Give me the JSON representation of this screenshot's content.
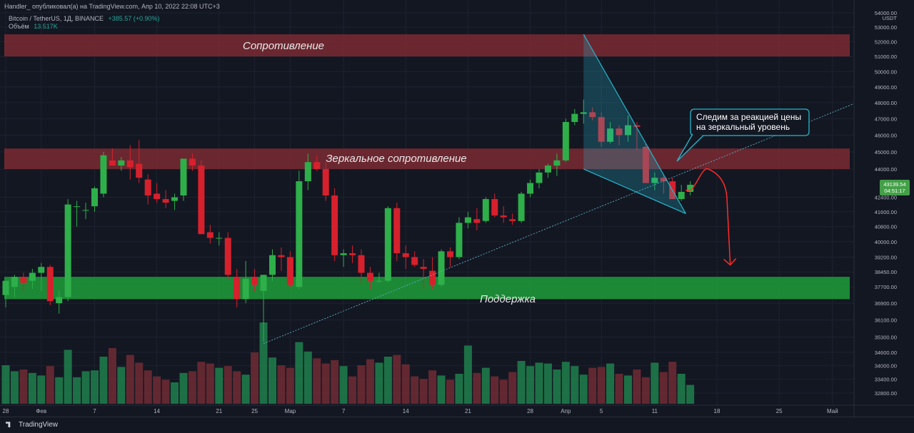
{
  "header": {
    "author_line": "Handler_ опубликовал(а) на TradingView.com, Апр 10, 2022 22:08 UTC+3",
    "symbol_line": "Bitcoin / TetherUS, 1Д, BINANCE",
    "change": "+385.57 (+0.90%)",
    "volume_label": "Объём",
    "volume_value": "13.517K",
    "currency": "USDT"
  },
  "footer": {
    "brand": "TradingView"
  },
  "colors": {
    "up": "#26a69a",
    "down": "#ef5350",
    "resistance_zone": "#7b2a33",
    "support_zone": "#1e9e3a",
    "triangle": "#22b8cf",
    "callout": "#22b8cf",
    "forecast": "#ff2b2b",
    "price_badge": "#43a047"
  },
  "annotations": {
    "resistance": "Сопротивление",
    "mirror_resistance": "Зеркальное сопротивление",
    "support": "Поддержка",
    "callout_line1": "Следим за реакцией цены",
    "callout_line2": "на зеркальный уровень"
  },
  "price_label": {
    "value": "43139.54",
    "timer": "04:51:17"
  },
  "chart_data": {
    "type": "candlestick",
    "scale": "log",
    "ylim": [
      32400,
      54000
    ],
    "y_ticks": [
      "54000.00",
      "53000.00",
      "52000.00",
      "51000.00",
      "50000.00",
      "49000.00",
      "48000.00",
      "47000.00",
      "46000.00",
      "45000.00",
      "44000.00",
      "42400.00",
      "41600.00",
      "40800.00",
      "40000.00",
      "39200.00",
      "38450.00",
      "37700.00",
      "36900.00",
      "36100.00",
      "35300.00",
      "34600.00",
      "34000.00",
      "33400.00",
      "32800.00"
    ],
    "x_ticks": [
      {
        "label": "28",
        "day": 0
      },
      {
        "label": "Фев",
        "day": 4
      },
      {
        "label": "7",
        "day": 10
      },
      {
        "label": "14",
        "day": 17
      },
      {
        "label": "21",
        "day": 24
      },
      {
        "label": "25",
        "day": 28
      },
      {
        "label": "Мар",
        "day": 32
      },
      {
        "label": "7",
        "day": 38
      },
      {
        "label": "14",
        "day": 45
      },
      {
        "label": "21",
        "day": 52
      },
      {
        "label": "28",
        "day": 59
      },
      {
        "label": "Апр",
        "day": 63
      },
      {
        "label": "5",
        "day": 67
      },
      {
        "label": "11",
        "day": 73
      },
      {
        "label": "18",
        "day": 80
      },
      {
        "label": "25",
        "day": 87
      },
      {
        "label": "Май",
        "day": 93
      }
    ],
    "zones": [
      {
        "name": "resistance",
        "from": 51000,
        "to": 52500
      },
      {
        "name": "mirror-resistance",
        "from": 44000,
        "to": 45200
      },
      {
        "name": "support",
        "from": 37100,
        "to": 38200
      }
    ],
    "candles": [
      {
        "o": 37300,
        "h": 38000,
        "l": 36700,
        "c": 38000,
        "v": 0.45
      },
      {
        "o": 37700,
        "h": 38300,
        "l": 37200,
        "c": 38200,
        "v": 0.38
      },
      {
        "o": 38200,
        "h": 38400,
        "l": 37500,
        "c": 37900,
        "v": 0.4
      },
      {
        "o": 38000,
        "h": 38600,
        "l": 37600,
        "c": 38400,
        "v": 0.36
      },
      {
        "o": 38400,
        "h": 38900,
        "l": 37500,
        "c": 38700,
        "v": 0.33
      },
      {
        "o": 38700,
        "h": 38800,
        "l": 36800,
        "c": 37000,
        "v": 0.44
      },
      {
        "o": 36900,
        "h": 37500,
        "l": 36400,
        "c": 37200,
        "v": 0.31
      },
      {
        "o": 37200,
        "h": 42300,
        "l": 37000,
        "c": 42000,
        "v": 0.63
      },
      {
        "o": 41900,
        "h": 42200,
        "l": 40800,
        "c": 41900,
        "v": 0.31
      },
      {
        "o": 41700,
        "h": 42100,
        "l": 41200,
        "c": 41700,
        "v": 0.38
      },
      {
        "o": 41900,
        "h": 43000,
        "l": 41600,
        "c": 42900,
        "v": 0.39
      },
      {
        "o": 42600,
        "h": 45000,
        "l": 42400,
        "c": 44800,
        "v": 0.55
      },
      {
        "o": 44500,
        "h": 45200,
        "l": 44300,
        "c": 44200,
        "v": 0.65
      },
      {
        "o": 44200,
        "h": 44700,
        "l": 43900,
        "c": 44500,
        "v": 0.43
      },
      {
        "o": 44500,
        "h": 45400,
        "l": 43400,
        "c": 44100,
        "v": 0.57
      },
      {
        "o": 44300,
        "h": 45700,
        "l": 43200,
        "c": 43500,
        "v": 0.48
      },
      {
        "o": 43400,
        "h": 43700,
        "l": 42000,
        "c": 42500,
        "v": 0.39
      },
      {
        "o": 42600,
        "h": 43200,
        "l": 42100,
        "c": 42300,
        "v": 0.32
      },
      {
        "o": 42300,
        "h": 42800,
        "l": 41800,
        "c": 42100,
        "v": 0.28
      },
      {
        "o": 42200,
        "h": 42600,
        "l": 41700,
        "c": 42400,
        "v": 0.25
      },
      {
        "o": 42500,
        "h": 44600,
        "l": 42200,
        "c": 44600,
        "v": 0.36
      },
      {
        "o": 44600,
        "h": 44900,
        "l": 43900,
        "c": 44200,
        "v": 0.38
      },
      {
        "o": 44200,
        "h": 44500,
        "l": 40400,
        "c": 40400,
        "v": 0.49
      },
      {
        "o": 40500,
        "h": 40900,
        "l": 39900,
        "c": 40200,
        "v": 0.47
      },
      {
        "o": 40200,
        "h": 40500,
        "l": 39800,
        "c": 40200,
        "v": 0.42
      },
      {
        "o": 40200,
        "h": 40500,
        "l": 38100,
        "c": 38300,
        "v": 0.44
      },
      {
        "o": 38200,
        "h": 38600,
        "l": 36700,
        "c": 37100,
        "v": 0.38
      },
      {
        "o": 37100,
        "h": 39000,
        "l": 36900,
        "c": 38100,
        "v": 0.34
      },
      {
        "o": 38200,
        "h": 38600,
        "l": 37500,
        "c": 37800,
        "v": 0.6
      },
      {
        "o": 37500,
        "h": 38200,
        "l": 35100,
        "c": 38300,
        "v": 0.95
      },
      {
        "o": 38300,
        "h": 39600,
        "l": 38000,
        "c": 39300,
        "v": 0.54
      },
      {
        "o": 39300,
        "h": 39700,
        "l": 38500,
        "c": 39200,
        "v": 0.45
      },
      {
        "o": 39200,
        "h": 39500,
        "l": 37700,
        "c": 37800,
        "v": 0.42
      },
      {
        "o": 37700,
        "h": 43900,
        "l": 37600,
        "c": 43300,
        "v": 0.72
      },
      {
        "o": 43300,
        "h": 44900,
        "l": 42800,
        "c": 44400,
        "v": 0.61
      },
      {
        "o": 44400,
        "h": 44800,
        "l": 43900,
        "c": 44000,
        "v": 0.53
      },
      {
        "o": 44000,
        "h": 44400,
        "l": 42200,
        "c": 42500,
        "v": 0.47
      },
      {
        "o": 42500,
        "h": 42900,
        "l": 39000,
        "c": 39300,
        "v": 0.51
      },
      {
        "o": 39300,
        "h": 39600,
        "l": 38700,
        "c": 39400,
        "v": 0.44
      },
      {
        "o": 39400,
        "h": 39800,
        "l": 38900,
        "c": 39300,
        "v": 0.32
      },
      {
        "o": 39300,
        "h": 39600,
        "l": 37900,
        "c": 38400,
        "v": 0.45
      },
      {
        "o": 38400,
        "h": 38700,
        "l": 37600,
        "c": 38000,
        "v": 0.52
      },
      {
        "o": 38000,
        "h": 38400,
        "l": 37900,
        "c": 38000,
        "v": 0.48
      },
      {
        "o": 38000,
        "h": 41900,
        "l": 37900,
        "c": 41800,
        "v": 0.55
      },
      {
        "o": 41800,
        "h": 42100,
        "l": 39000,
        "c": 39400,
        "v": 0.57
      },
      {
        "o": 39400,
        "h": 39800,
        "l": 38600,
        "c": 39200,
        "v": 0.46
      },
      {
        "o": 39200,
        "h": 39500,
        "l": 38700,
        "c": 38800,
        "v": 0.32
      },
      {
        "o": 38700,
        "h": 39100,
        "l": 37600,
        "c": 38600,
        "v": 0.29
      },
      {
        "o": 38500,
        "h": 39200,
        "l": 37600,
        "c": 37800,
        "v": 0.39
      },
      {
        "o": 37800,
        "h": 39600,
        "l": 37700,
        "c": 39500,
        "v": 0.33
      },
      {
        "o": 39500,
        "h": 39700,
        "l": 38700,
        "c": 39200,
        "v": 0.28
      },
      {
        "o": 39200,
        "h": 41300,
        "l": 39100,
        "c": 41000,
        "v": 0.35
      },
      {
        "o": 41000,
        "h": 41600,
        "l": 40700,
        "c": 41300,
        "v": 0.68
      },
      {
        "o": 41200,
        "h": 41800,
        "l": 40600,
        "c": 41000,
        "v": 0.36
      },
      {
        "o": 41100,
        "h": 42400,
        "l": 41000,
        "c": 42300,
        "v": 0.42
      },
      {
        "o": 42300,
        "h": 42600,
        "l": 41300,
        "c": 41400,
        "v": 0.32
      },
      {
        "o": 41400,
        "h": 41900,
        "l": 41000,
        "c": 41300,
        "v": 0.28
      },
      {
        "o": 41200,
        "h": 41500,
        "l": 40900,
        "c": 41100,
        "v": 0.37
      },
      {
        "o": 41100,
        "h": 42700,
        "l": 41000,
        "c": 42600,
        "v": 0.5
      },
      {
        "o": 42600,
        "h": 43400,
        "l": 42400,
        "c": 43200,
        "v": 0.44
      },
      {
        "o": 43200,
        "h": 44000,
        "l": 42900,
        "c": 43800,
        "v": 0.48
      },
      {
        "o": 43800,
        "h": 44300,
        "l": 43500,
        "c": 44200,
        "v": 0.47
      },
      {
        "o": 44200,
        "h": 44900,
        "l": 43600,
        "c": 44500,
        "v": 0.4
      },
      {
        "o": 44500,
        "h": 47000,
        "l": 44400,
        "c": 46800,
        "v": 0.49
      },
      {
        "o": 46800,
        "h": 47600,
        "l": 46600,
        "c": 47300,
        "v": 0.44
      },
      {
        "o": 47300,
        "h": 48200,
        "l": 46700,
        "c": 47400,
        "v": 0.34
      },
      {
        "o": 47400,
        "h": 47700,
        "l": 46900,
        "c": 47100,
        "v": 0.42
      },
      {
        "o": 47100,
        "h": 47400,
        "l": 45300,
        "c": 45600,
        "v": 0.43
      },
      {
        "o": 45600,
        "h": 46800,
        "l": 45500,
        "c": 46400,
        "v": 0.47
      },
      {
        "o": 46400,
        "h": 46600,
        "l": 45400,
        "c": 46000,
        "v": 0.35
      },
      {
        "o": 46000,
        "h": 47200,
        "l": 45600,
        "c": 46600,
        "v": 0.33
      },
      {
        "o": 46600,
        "h": 46800,
        "l": 45100,
        "c": 46500,
        "v": 0.4
      },
      {
        "o": 45300,
        "h": 45500,
        "l": 43200,
        "c": 43200,
        "v": 0.31
      },
      {
        "o": 43200,
        "h": 43800,
        "l": 42800,
        "c": 43500,
        "v": 0.48
      },
      {
        "o": 43500,
        "h": 43700,
        "l": 42600,
        "c": 43300,
        "v": 0.37
      },
      {
        "o": 43300,
        "h": 43500,
        "l": 42300,
        "c": 42300,
        "v": 0.49
      },
      {
        "o": 42300,
        "h": 43100,
        "l": 42200,
        "c": 42700,
        "v": 0.35
      },
      {
        "o": 42700,
        "h": 43300,
        "l": 42500,
        "c": 43100,
        "v": 0.22
      }
    ],
    "trendline": [
      {
        "day": 29,
        "price": 35000
      },
      {
        "day": 97,
        "price": 48300
      }
    ],
    "triangle": [
      {
        "day": 65,
        "price": 52500
      },
      {
        "day": 65,
        "price": 44000
      },
      {
        "day": 76.5,
        "price": 41500
      }
    ],
    "forecast": [
      {
        "day": 76.5,
        "price": 42800
      },
      {
        "day": 79,
        "price": 44000
      },
      {
        "day": 80.8,
        "price": 43200
      },
      {
        "day": 81.5,
        "price": 38800
      }
    ]
  }
}
